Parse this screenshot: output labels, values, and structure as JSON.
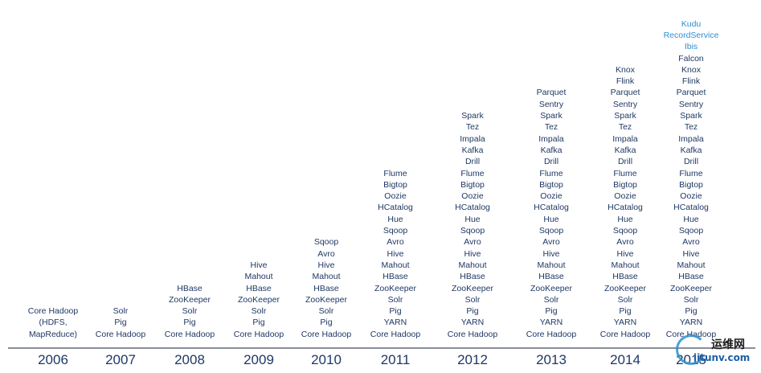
{
  "columns": [
    {
      "year": "2006",
      "items": [
        "Core Hadoop",
        "(HDFS,",
        "MapReduce)"
      ],
      "new_items": []
    },
    {
      "year": "2007",
      "items": [
        "Solr",
        "Pig",
        "Core Hadoop"
      ],
      "new_items": []
    },
    {
      "year": "2008",
      "items": [
        "HBase",
        "ZooKeeper",
        "Solr",
        "Pig",
        "Core Hadoop"
      ],
      "new_items": []
    },
    {
      "year": "2009",
      "items": [
        "Hive",
        "Mahout",
        "HBase",
        "ZooKeeper",
        "Solr",
        "Pig",
        "Core Hadoop"
      ],
      "new_items": []
    },
    {
      "year": "2010",
      "items": [
        "Sqoop",
        "Avro",
        "Hive",
        "Mahout",
        "HBase",
        "ZooKeeper",
        "Solr",
        "Pig",
        "Core Hadoop"
      ],
      "new_items": []
    },
    {
      "year": "2011",
      "items": [
        "Flume",
        "Bigtop",
        "Oozie",
        "HCatalog",
        "Hue",
        "Sqoop",
        "Avro",
        "Hive",
        "Mahout",
        "HBase",
        "ZooKeeper",
        "Solr",
        "Pig",
        "YARN",
        "Core Hadoop"
      ],
      "new_items": []
    },
    {
      "year": "2012",
      "items": [
        "Spark",
        "Tez",
        "Impala",
        "Kafka",
        "Drill",
        "Flume",
        "Bigtop",
        "Oozie",
        "HCatalog",
        "Hue",
        "Sqoop",
        "Avro",
        "Hive",
        "Mahout",
        "HBase",
        "ZooKeeper",
        "Solr",
        "Pig",
        "YARN",
        "Core Hadoop"
      ],
      "new_items": []
    },
    {
      "year": "2013",
      "items": [
        "Parquet",
        "Sentry",
        "Spark",
        "Tez",
        "Impala",
        "Kafka",
        "Drill",
        "Flume",
        "Bigtop",
        "Oozie",
        "HCatalog",
        "Hue",
        "Sqoop",
        "Avro",
        "Hive",
        "Mahout",
        "HBase",
        "ZooKeeper",
        "Solr",
        "Pig",
        "YARN",
        "Core Hadoop"
      ],
      "new_items": []
    },
    {
      "year": "2014",
      "items": [
        "Knox",
        "Flink",
        "Parquet",
        "Sentry",
        "Spark",
        "Tez",
        "Impala",
        "Kafka",
        "Drill",
        "Flume",
        "Bigtop",
        "Oozie",
        "HCatalog",
        "Hue",
        "Sqoop",
        "Avro",
        "Hive",
        "Mahout",
        "HBase",
        "ZooKeeper",
        "Solr",
        "Pig",
        "YARN",
        "Core Hadoop"
      ],
      "new_items": []
    },
    {
      "year": "2015",
      "items": [
        "Falcon",
        "Knox",
        "Flink",
        "Parquet",
        "Sentry",
        "Spark",
        "Tez",
        "Impala",
        "Kafka",
        "Drill",
        "Flume",
        "Bigtop",
        "Oozie",
        "HCatalog",
        "Hue",
        "Sqoop",
        "Avro",
        "Hive",
        "Mahout",
        "HBase",
        "ZooKeeper",
        "Solr",
        "Pig",
        "YARN",
        "Core Hadoop"
      ],
      "new_items": [
        "Kudu",
        "RecordService",
        "Ibis"
      ]
    }
  ],
  "colors": {
    "text": "#1f3864",
    "highlight": "#2e8fd4",
    "axis": "#8a8f99"
  },
  "watermark": {
    "cn": "运维网",
    "url": "iitunv.com"
  }
}
